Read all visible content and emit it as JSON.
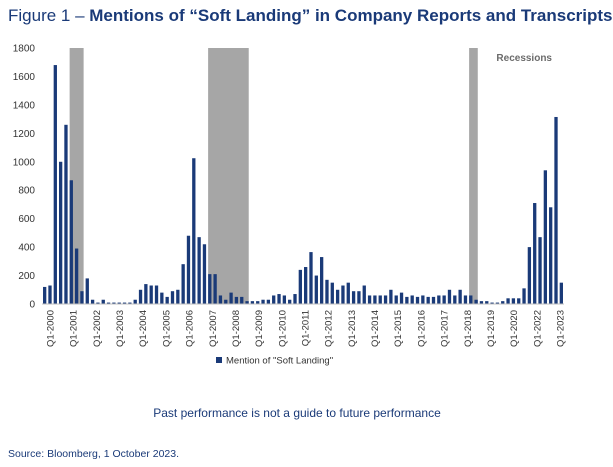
{
  "title": {
    "prefix": "Figure 1 – ",
    "main": "Mentions of “Soft Landing” in Company Reports and Transcripts"
  },
  "chart_data": {
    "type": "bar",
    "title": "Figure 1 – Mentions of “Soft Landing” in Company Reports and Transcripts",
    "series": [
      {
        "name": "Mention of \"Soft Landing\"",
        "color": "#1a3a78",
        "values": [
          120,
          130,
          1680,
          1000,
          1260,
          870,
          390,
          90,
          180,
          30,
          10,
          30,
          10,
          10,
          10,
          10,
          10,
          30,
          100,
          140,
          130,
          130,
          80,
          50,
          90,
          100,
          280,
          480,
          1025,
          470,
          420,
          210,
          210,
          60,
          30,
          80,
          50,
          50,
          20,
          20,
          20,
          30,
          30,
          60,
          70,
          60,
          30,
          70,
          240,
          260,
          365,
          200,
          330,
          170,
          150,
          100,
          130,
          150,
          90,
          90,
          130,
          60,
          60,
          60,
          60,
          100,
          60,
          80,
          50,
          60,
          50,
          60,
          50,
          50,
          60,
          60,
          100,
          60,
          100,
          60,
          60,
          30,
          20,
          20,
          10,
          10,
          20,
          40,
          40,
          40,
          110,
          400,
          710,
          470,
          940,
          680,
          1315,
          150
        ]
      }
    ],
    "x_tick_labels": [
      "Q1-2000",
      "Q1-2001",
      "Q1-2002",
      "Q1-2003",
      "Q1-2004",
      "Q1-2005",
      "Q1-2006",
      "Q1-2007",
      "Q1-2008",
      "Q1-2009",
      "Q1-2010",
      "Q1-2011",
      "Q1-2012",
      "Q1-2013",
      "Q1-2014",
      "Q1-2015",
      "Q1-2016",
      "Q1-2017",
      "Q1-2018",
      "Q1-2019",
      "Q1-2020",
      "Q1-2022",
      "Q1-2023"
    ],
    "y_ticks": [
      0,
      200,
      400,
      600,
      800,
      1000,
      1200,
      1400,
      1600,
      1800
    ],
    "ylim": [
      0,
      1800
    ],
    "recessions": [
      {
        "start_index": 5,
        "end_index": 7
      },
      {
        "start_index": 31,
        "end_index": 38
      },
      {
        "start_index": 80,
        "end_index": 81
      }
    ],
    "recession_label": "Recessions",
    "recession_color": "#a6a6a6",
    "legend_position": "bottom-center",
    "grid": false
  },
  "caption": "Past performance is not a guide to future performance",
  "source": "Source: Bloomberg, 1 October 2023."
}
